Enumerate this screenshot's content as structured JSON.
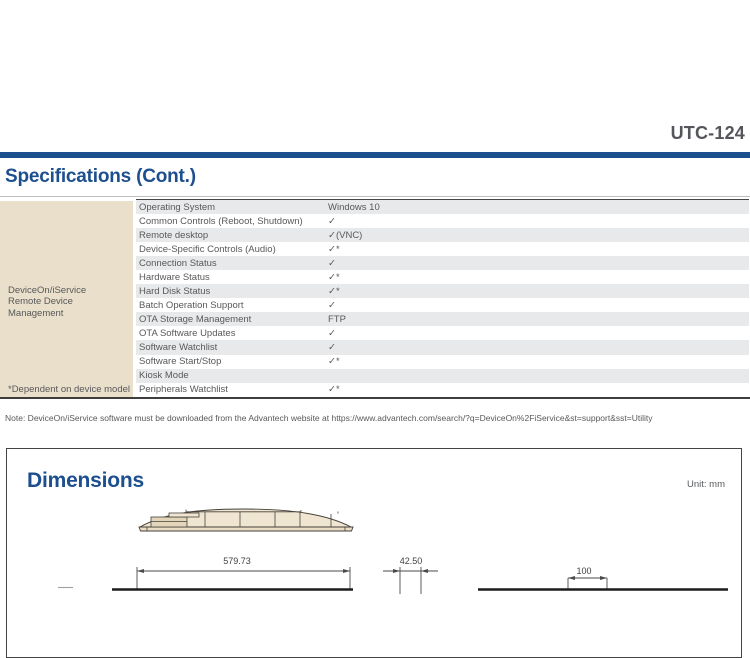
{
  "header": {
    "product_model": "UTC-124"
  },
  "specifications": {
    "title": "Specifications (Cont.)",
    "group": {
      "label_line1": "DeviceOn/iService",
      "label_line2": "Remote Device Management",
      "footnote": "*Dependent on device model"
    },
    "rows": [
      {
        "feature": "Operating System",
        "value": "Windows 10"
      },
      {
        "feature": "Common Controls (Reboot, Shutdown)",
        "value": "✓"
      },
      {
        "feature": "Remote desktop",
        "value": "✓(VNC)"
      },
      {
        "feature": "Device-Specific Controls (Audio)",
        "value": "✓*"
      },
      {
        "feature": "Connection Status",
        "value": "✓"
      },
      {
        "feature": "Hardware Status",
        "value": "✓*"
      },
      {
        "feature": "Hard Disk Status",
        "value": "✓*"
      },
      {
        "feature": "Batch Operation Support",
        "value": "✓"
      },
      {
        "feature": "OTA Storage Management",
        "value": "FTP"
      },
      {
        "feature": "OTA Software Updates",
        "value": "✓"
      },
      {
        "feature": "Software Watchlist",
        "value": "✓"
      },
      {
        "feature": "Software Start/Stop",
        "value": "✓*"
      },
      {
        "feature": "Kiosk Mode",
        "value": ""
      },
      {
        "feature": "Peripherals Watchlist",
        "value": "✓*"
      }
    ],
    "note": "Note: DeviceOn/iService software must be downloaded from the Advantech website at https://www.advantech.com/search/?q=DeviceOn%2FiService&st=support&sst=Utility"
  },
  "dimensions": {
    "title": "Dimensions",
    "unit_label": "Unit: mm",
    "width_mm": "579.73",
    "depth_mm": "42.50",
    "mount_spacing_mm": "100"
  },
  "colors": {
    "accent_blue": "#1d4f8f",
    "model_gray": "#54565b",
    "row_stripe": "#e8e9ea",
    "group_beige": "#e9dfca",
    "body_text": "#58595b"
  }
}
